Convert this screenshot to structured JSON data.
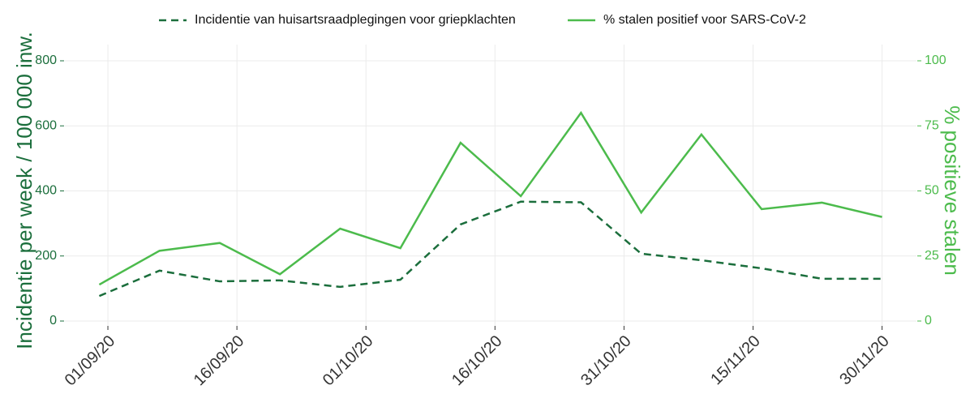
{
  "chart_data": {
    "type": "line",
    "x": [
      "31/08/20",
      "07/09/20",
      "14/09/20",
      "21/09/20",
      "28/09/20",
      "05/10/20",
      "12/10/20",
      "19/10/20",
      "26/10/20",
      "02/11/20",
      "09/11/20",
      "16/11/20",
      "23/11/20",
      "30/11/20"
    ],
    "series": [
      {
        "name": "Incidentie van huisartsraadplegingen voor griepklachten",
        "color": "#1b6e3c",
        "dash": "dashed",
        "values": [
          77,
          155,
          122,
          125,
          105,
          127,
          297,
          367,
          365,
          207,
          187,
          162,
          130,
          130
        ]
      },
      {
        "name": "% stalen positief voor SARS-CoV-2",
        "color": "#4cbb4c",
        "dash": "solid",
        "axis": "y2",
        "values": [
          14,
          27,
          30,
          18,
          35.5,
          28,
          68.5,
          48,
          80,
          41.7,
          71.7,
          43,
          45.5,
          40
        ]
      }
    ],
    "ylabel": "Incidentie per week / 100 000 inw.",
    "y2label": "% positieve stalen",
    "xlim": [
      "27/08/20",
      "04/12/20"
    ],
    "xticks": [
      "01/09/20",
      "16/09/20",
      "01/10/20",
      "16/10/20",
      "31/10/20",
      "15/11/20",
      "30/11/20"
    ],
    "ylim": [
      0,
      800
    ],
    "yticks": [
      0,
      200,
      400,
      600,
      800
    ],
    "y2lim": [
      0,
      100
    ],
    "y2ticks": [
      0,
      25,
      50,
      75,
      100
    ],
    "grid": true,
    "legend": "top"
  }
}
